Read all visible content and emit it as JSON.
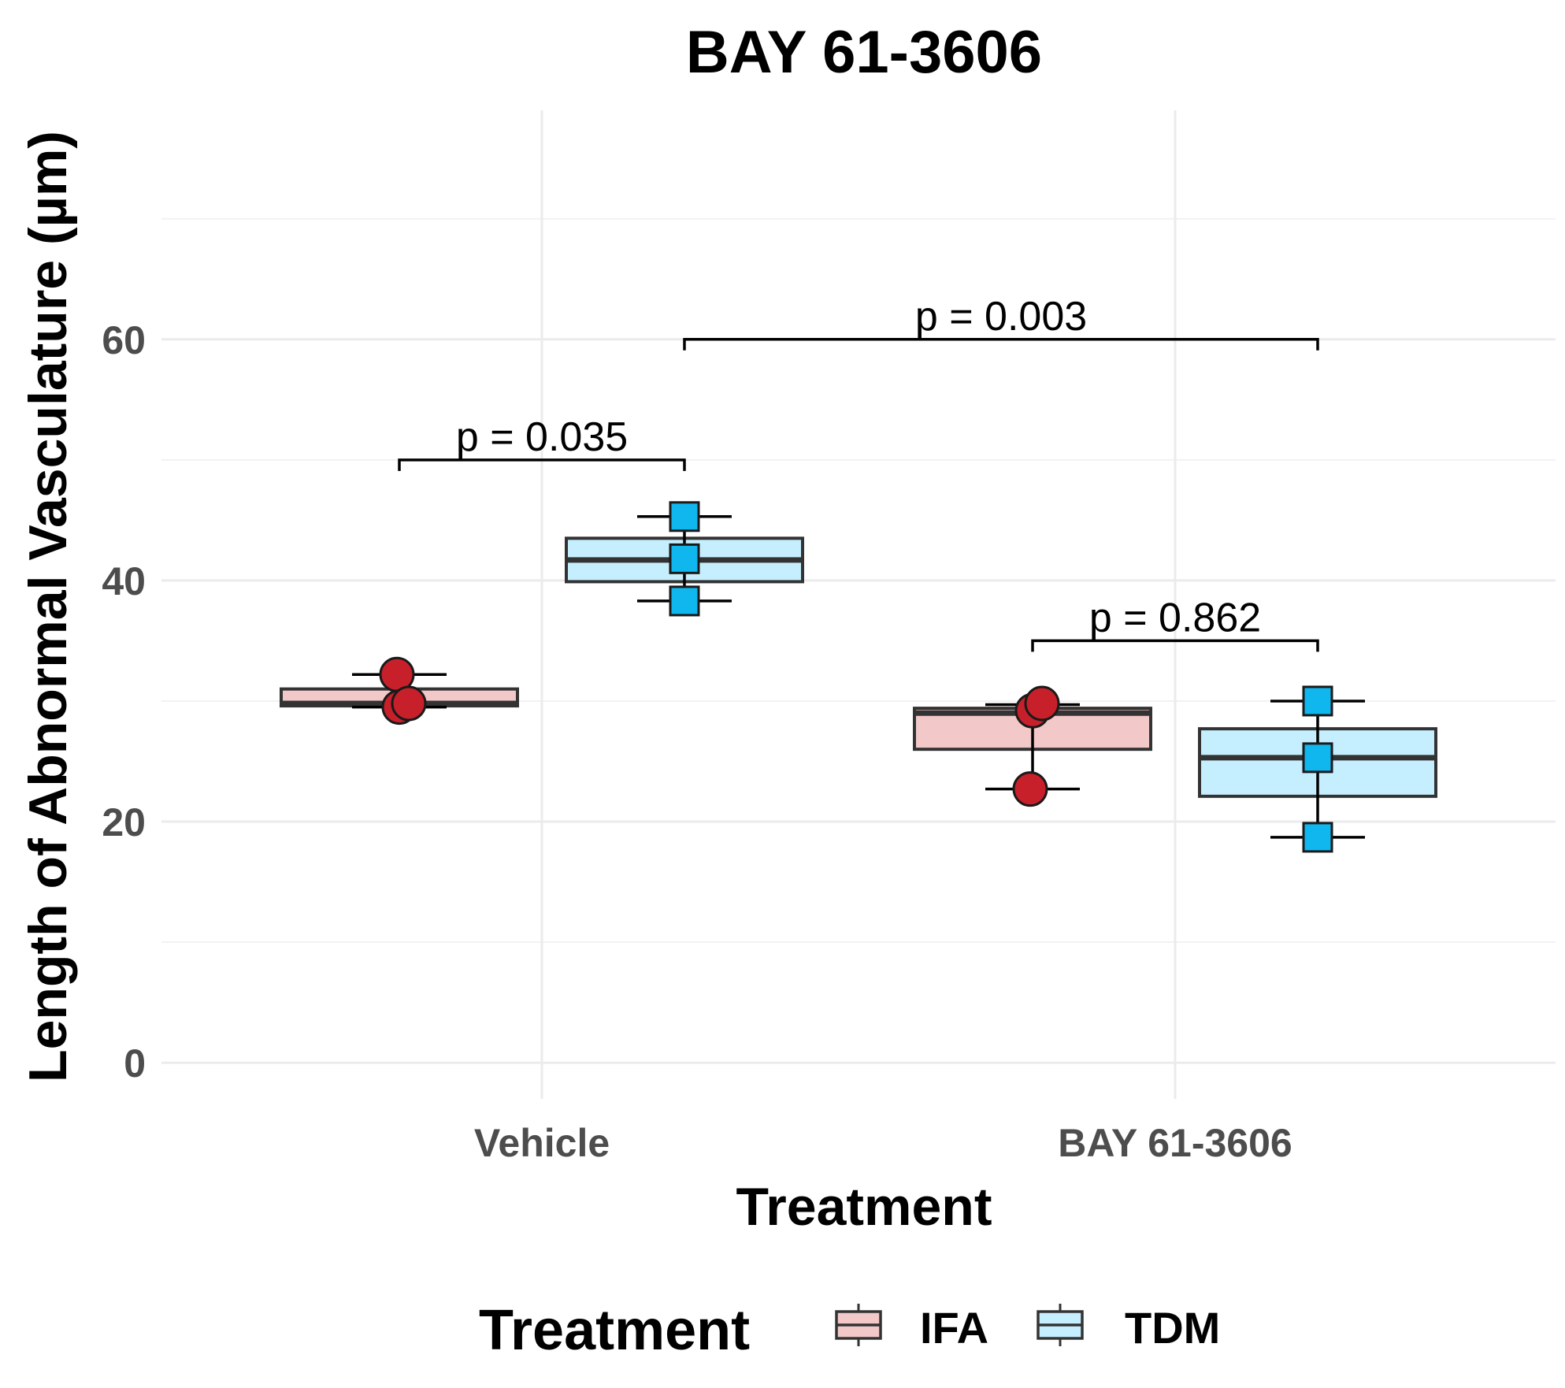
{
  "chart_data": {
    "type": "box",
    "title": "BAY 61-3606",
    "xlabel": "Treatment",
    "ylabel": "Length of Abnormal Vasculature (µm)",
    "ylim": [
      -3,
      79
    ],
    "yticks": [
      0,
      20,
      40,
      60
    ],
    "categories": [
      "Vehicle",
      "BAY 61-3606"
    ],
    "grid": true,
    "legend": {
      "title": "Treatment",
      "position": "bottom",
      "entries": [
        "IFA",
        "TDM"
      ]
    },
    "series": [
      {
        "name": "IFA",
        "fill": "#f2c8c8",
        "point_color": "#c8202a",
        "marker": "circle",
        "boxes": [
          {
            "category": "Vehicle",
            "q1": 29.6,
            "median": 29.8,
            "q3": 31.0
          },
          {
            "category": "BAY 61-3606",
            "q1": 26.0,
            "median": 29.0,
            "q3": 29.4
          }
        ],
        "errorbars": [
          {
            "category": "Vehicle",
            "low": 29.5,
            "high": 32.2
          },
          {
            "category": "BAY 61-3606",
            "low": 22.7,
            "high": 29.7
          }
        ],
        "points": [
          {
            "category": "Vehicle",
            "values": [
              32.2,
              29.5,
              29.8
            ]
          },
          {
            "category": "BAY 61-3606",
            "values": [
              22.7,
              29.2,
              29.8
            ]
          }
        ]
      },
      {
        "name": "TDM",
        "fill": "#c5efff",
        "point_color": "#10b7ee",
        "marker": "square",
        "boxes": [
          {
            "category": "Vehicle",
            "q1": 39.9,
            "median": 41.7,
            "q3": 43.5
          },
          {
            "category": "BAY 61-3606",
            "q1": 22.1,
            "median": 25.3,
            "q3": 27.7
          }
        ],
        "errorbars": [
          {
            "category": "Vehicle",
            "low": 38.3,
            "high": 45.3
          },
          {
            "category": "BAY 61-3606",
            "low": 18.7,
            "high": 30.0
          }
        ],
        "points": [
          {
            "category": "Vehicle",
            "values": [
              45.3,
              41.8,
              38.3
            ]
          },
          {
            "category": "BAY 61-3606",
            "values": [
              30.0,
              25.3,
              18.7
            ]
          }
        ]
      }
    ],
    "annotations": [
      {
        "text": "p = 0.035",
        "y": 50.0,
        "from": {
          "category": "Vehicle",
          "series": "IFA"
        },
        "to": {
          "category": "Vehicle",
          "series": "TDM"
        }
      },
      {
        "text": "p = 0.862",
        "y": 35.0,
        "from": {
          "category": "BAY 61-3606",
          "series": "IFA"
        },
        "to": {
          "category": "BAY 61-3606",
          "series": "TDM"
        }
      },
      {
        "text": "p = 0.003",
        "y": 60.0,
        "from": {
          "category": "Vehicle",
          "series": "TDM"
        },
        "to": {
          "category": "BAY 61-3606",
          "series": "TDM"
        }
      }
    ]
  }
}
